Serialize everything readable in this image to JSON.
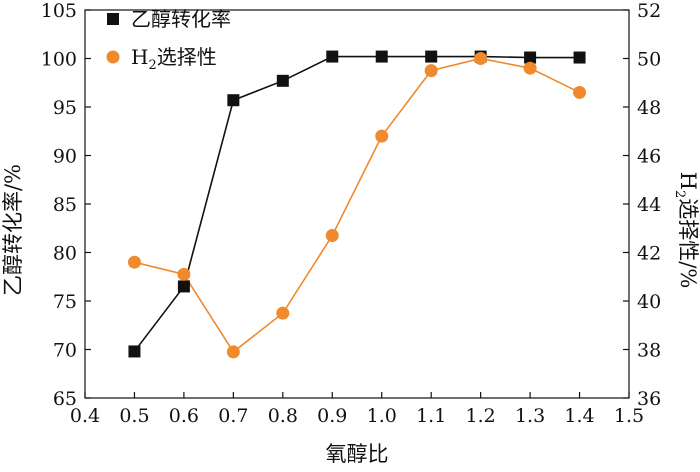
{
  "chart_data": {
    "type": "line",
    "title": "",
    "xlabel": "氧醇比",
    "ylabel_left": "乙醇转化率/%",
    "ylabel_right_main": "H",
    "ylabel_right_sub": "2",
    "ylabel_right_rest": "选择性/%",
    "xlim": [
      0.4,
      1.5
    ],
    "ylim_left": [
      65,
      105
    ],
    "ylim_right": [
      36,
      52
    ],
    "x_ticks": [
      "0.4",
      "0.5",
      "0.6",
      "0.7",
      "0.8",
      "0.9",
      "1.0",
      "1.1",
      "1.2",
      "1.3",
      "1.4",
      "1.5"
    ],
    "y_left_ticks": [
      "65",
      "70",
      "75",
      "80",
      "85",
      "90",
      "95",
      "100",
      "105"
    ],
    "y_right_ticks": [
      "36",
      "38",
      "40",
      "42",
      "44",
      "46",
      "48",
      "50",
      "52"
    ],
    "x": [
      0.5,
      0.6,
      0.7,
      0.8,
      0.9,
      1.0,
      1.1,
      1.2,
      1.3,
      1.4
    ],
    "series": [
      {
        "name": "乙醇转化率",
        "axis": "left",
        "marker": "square",
        "color": "#111111",
        "values": [
          69.8,
          76.5,
          95.7,
          97.7,
          100.2,
          100.2,
          100.2,
          100.2,
          100.1,
          100.1
        ]
      },
      {
        "name_main": "H",
        "name_sub": "2",
        "name_rest": "选择性",
        "axis": "right",
        "marker": "circle",
        "color": "#F08A2C",
        "values": [
          41.6,
          41.1,
          37.9,
          39.5,
          42.7,
          46.8,
          49.5,
          50.0,
          49.6,
          48.6
        ]
      }
    ],
    "grid": false,
    "legend_position": "top-left"
  }
}
